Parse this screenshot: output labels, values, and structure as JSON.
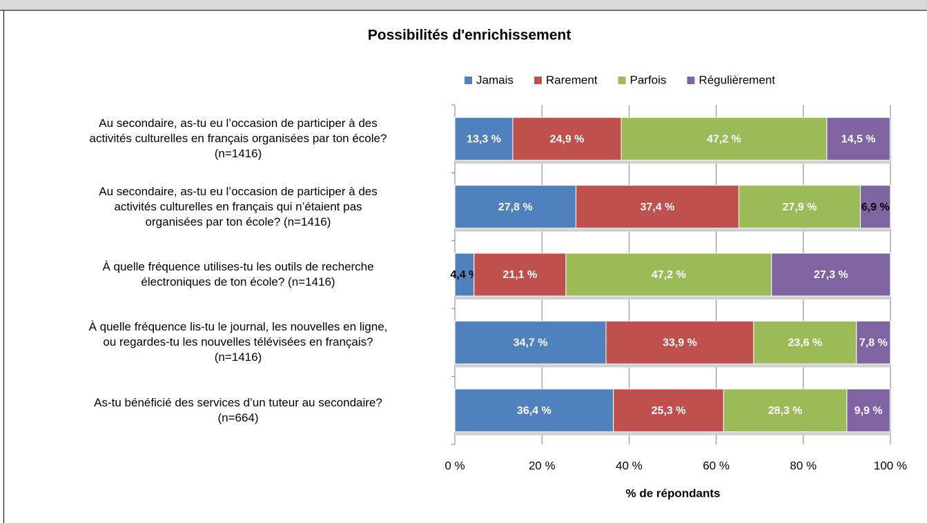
{
  "chart_data": {
    "type": "stacked_barh",
    "title": "Possibilités d'enrichissement",
    "xlabel": "% de répondants",
    "categories": [
      "Au secondaire, as-tu eu l’occasion de participer à des\nactivités culturelles en français organisées par ton école?\n(n=1416)",
      "Au secondaire, as-tu eu l’occasion de participer à des\nactivités culturelles en français qui n’étaient pas\norganisées par ton école? (n=1416)",
      "À quelle fréquence utilises-tu les outils de recherche\nélectroniques de ton école? (n=1416)",
      "À quelle fréquence lis-tu le journal, les nouvelles en ligne,\nou regardes-tu les nouvelles télévisées en français?\n(n=1416)",
      "As-tu bénéficié des services d’un tuteur au secondaire?\n(n=664)"
    ],
    "series": [
      {
        "name": "Jamais",
        "color": "#4f81bd",
        "values": [
          13.3,
          27.8,
          4.4,
          34.7,
          36.4
        ],
        "value_labels": [
          "13,3 %",
          "27,8 %",
          "4,4 %",
          "34,7 %",
          "36,4 %"
        ]
      },
      {
        "name": "Rarement",
        "color": "#c0504d",
        "values": [
          24.9,
          37.4,
          21.1,
          33.9,
          25.3
        ],
        "value_labels": [
          "24,9 %",
          "37,4 %",
          "21,1 %",
          "33,9 %",
          "25,3 %"
        ]
      },
      {
        "name": "Parfois",
        "color": "#9bbb59",
        "values": [
          47.2,
          27.9,
          47.2,
          23.6,
          28.3
        ],
        "value_labels": [
          "47,2 %",
          "27,9 %",
          "47,2 %",
          "23,6 %",
          "28,3 %"
        ]
      },
      {
        "name": "Régulièrement",
        "color": "#8064a2",
        "values": [
          14.5,
          6.9,
          27.3,
          7.8,
          9.9
        ],
        "value_labels": [
          "14,5 %",
          "6,9 %",
          "27,3 %",
          "7,8 %",
          "9,9 %"
        ]
      }
    ],
    "xlim": [
      0,
      100
    ],
    "xticks": [
      {
        "value": 0,
        "label": "0 %"
      },
      {
        "value": 20,
        "label": "20 %"
      },
      {
        "value": 40,
        "label": "40 %"
      },
      {
        "value": 60,
        "label": "60 %"
      },
      {
        "value": 80,
        "label": "80 %"
      },
      {
        "value": 100,
        "label": "100 %"
      }
    ],
    "grid": true,
    "legend": "top"
  }
}
